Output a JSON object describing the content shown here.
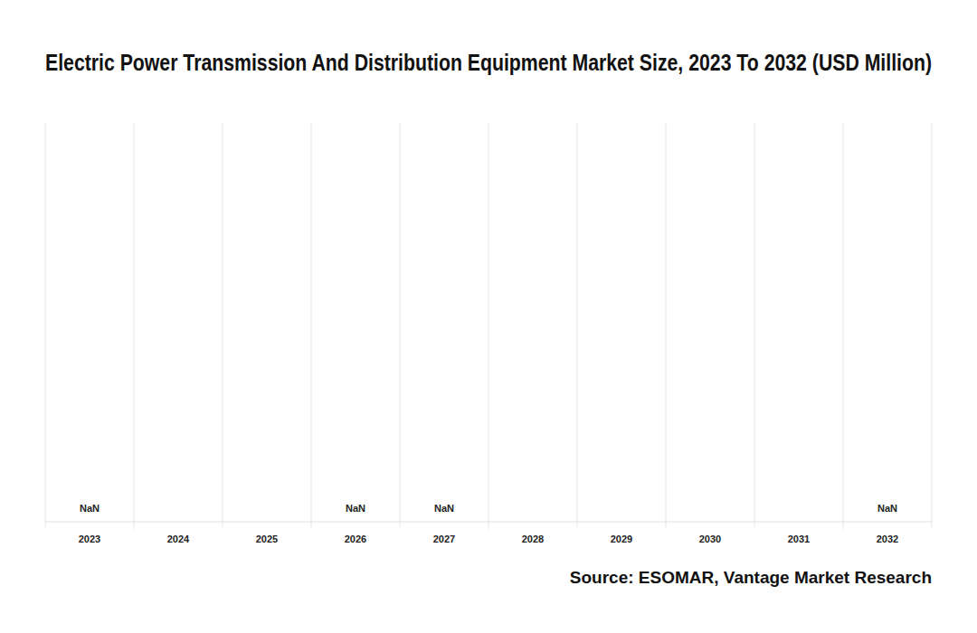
{
  "chart_data": {
    "type": "bar",
    "title": "Electric Power Transmission And Distribution Equipment Market Size, 2023 To 2032 (USD Million)",
    "categories": [
      "2023",
      "2024",
      "2025",
      "2026",
      "2027",
      "2028",
      "2029",
      "2030",
      "2031",
      "2032"
    ],
    "values": [
      null,
      null,
      null,
      null,
      null,
      null,
      null,
      null,
      null,
      null
    ],
    "value_labels": [
      "NaN",
      null,
      null,
      "NaN",
      "NaN",
      null,
      null,
      null,
      null,
      "NaN"
    ],
    "data_labels": true,
    "grid": true,
    "tick_labels": "x",
    "source": "Source: ESOMAR, Vantage Market Research"
  }
}
